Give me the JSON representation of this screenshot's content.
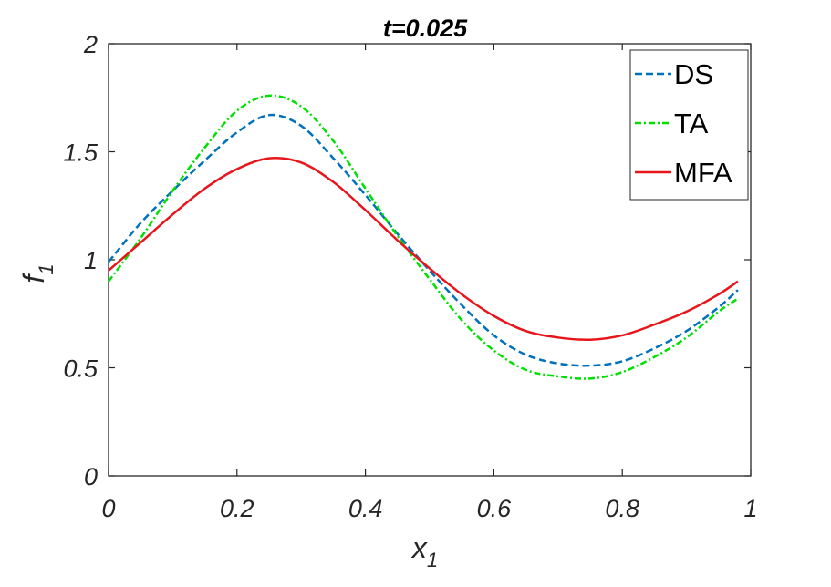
{
  "chart_data": {
    "type": "line",
    "title": "t=0.025",
    "xlabel": {
      "main": "x",
      "sub": "1"
    },
    "ylabel": {
      "main": "f",
      "sub": "1"
    },
    "xlim": [
      0,
      1
    ],
    "ylim": [
      0,
      2
    ],
    "x_ticks": [
      0,
      0.2,
      0.4,
      0.6,
      0.8,
      1
    ],
    "x_tick_labels": [
      "0",
      "0.2",
      "0.4",
      "0.6",
      "0.8",
      "1"
    ],
    "y_ticks": [
      0,
      0.5,
      1,
      1.5,
      2
    ],
    "y_tick_labels": [
      "0",
      "0.5",
      "1",
      "1.5",
      "2"
    ],
    "grid": false,
    "legend_position": "top-right",
    "series": [
      {
        "name": "DS",
        "color": "#0072BD",
        "style": "dashed",
        "x": [
          0,
          0.05,
          0.1,
          0.15,
          0.2,
          0.25,
          0.3,
          0.35,
          0.4,
          0.45,
          0.5,
          0.55,
          0.6,
          0.65,
          0.7,
          0.75,
          0.8,
          0.85,
          0.9,
          0.95,
          0.98
        ],
        "y": [
          0.99,
          1.17,
          1.32,
          1.46,
          1.59,
          1.67,
          1.62,
          1.47,
          1.3,
          1.12,
          0.95,
          0.79,
          0.65,
          0.56,
          0.52,
          0.51,
          0.53,
          0.59,
          0.67,
          0.78,
          0.86
        ]
      },
      {
        "name": "TA",
        "color": "#00E000",
        "style": "dash-dot",
        "x": [
          0,
          0.05,
          0.1,
          0.15,
          0.2,
          0.25,
          0.3,
          0.35,
          0.4,
          0.45,
          0.5,
          0.55,
          0.6,
          0.65,
          0.7,
          0.75,
          0.8,
          0.85,
          0.9,
          0.95,
          0.98
        ],
        "y": [
          0.9,
          1.1,
          1.32,
          1.52,
          1.69,
          1.76,
          1.71,
          1.55,
          1.33,
          1.11,
          0.91,
          0.72,
          0.58,
          0.49,
          0.46,
          0.45,
          0.48,
          0.55,
          0.64,
          0.76,
          0.82
        ]
      },
      {
        "name": "MFA",
        "color": "#E8151B",
        "style": "solid",
        "x": [
          0,
          0.05,
          0.1,
          0.15,
          0.2,
          0.25,
          0.3,
          0.35,
          0.4,
          0.45,
          0.5,
          0.55,
          0.6,
          0.65,
          0.7,
          0.75,
          0.8,
          0.85,
          0.9,
          0.95,
          0.98
        ],
        "y": [
          0.95,
          1.08,
          1.21,
          1.33,
          1.42,
          1.47,
          1.45,
          1.36,
          1.23,
          1.09,
          0.96,
          0.84,
          0.74,
          0.67,
          0.64,
          0.63,
          0.65,
          0.7,
          0.76,
          0.84,
          0.9
        ]
      }
    ]
  }
}
